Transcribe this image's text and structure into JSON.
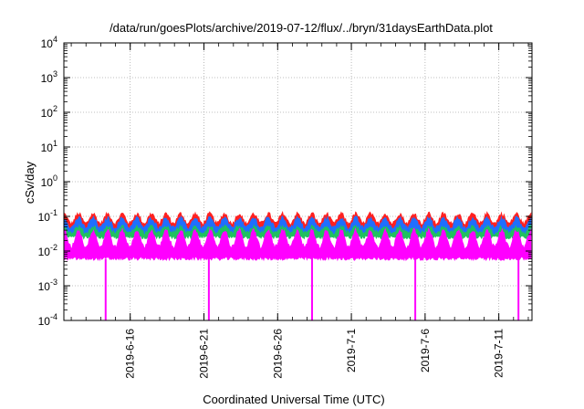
{
  "chart_data": {
    "type": "area",
    "title": "/data/run/goesPlots/archive/2019-07-12/flux/../bryn/31daysEarthData.plot",
    "xlabel": "Coordinated Universal Time (UTC)",
    "ylabel": "cSv/day",
    "yscale": "log",
    "ylim": [
      0.0001,
      10000
    ],
    "xlim": [
      "2019-06-11T12:00",
      "2019-07-13T06:00"
    ],
    "y_ticks": [
      {
        "base": "10",
        "exp": "-4"
      },
      {
        "base": "10",
        "exp": "-3"
      },
      {
        "base": "10",
        "exp": "-2"
      },
      {
        "base": "10",
        "exp": "-1"
      },
      {
        "base": "10",
        "exp": "0"
      },
      {
        "base": "10",
        "exp": "1"
      },
      {
        "base": "10",
        "exp": "2"
      },
      {
        "base": "10",
        "exp": "3"
      },
      {
        "base": "10",
        "exp": "4"
      }
    ],
    "x_ticks": [
      {
        "label": "2019-6-16",
        "date": "2019-06-16"
      },
      {
        "label": "2019-6-21",
        "date": "2019-06-21"
      },
      {
        "label": "2019-6-26",
        "date": "2019-06-26"
      },
      {
        "label": "2019-7-1",
        "date": "2019-07-01"
      },
      {
        "label": "2019-7-6",
        "date": "2019-07-06"
      },
      {
        "label": "2019-7-11",
        "date": "2019-07-11"
      }
    ],
    "grid": true,
    "legend": "none",
    "orbit_period_days": 0.99,
    "series": [
      {
        "color": "#ff2020",
        "low": 0.04,
        "high": 0.12
      },
      {
        "color": "#1f6fff",
        "low": 0.03,
        "high": 0.09
      },
      {
        "color": "#20c060",
        "low": 0.025,
        "high": 0.05
      },
      {
        "color": "#ff00ff",
        "low": 0.006,
        "high": 0.04
      }
    ],
    "dropouts": [
      {
        "date": "2019-06-14T08:00",
        "value": 0.0001
      },
      {
        "date": "2019-06-21T08:00",
        "value": 0.0001
      },
      {
        "date": "2019-06-28T08:00",
        "value": 0.0001
      },
      {
        "date": "2019-07-05T08:00",
        "value": 0.0001
      },
      {
        "date": "2019-07-12T08:00",
        "value": 0.0001
      }
    ]
  }
}
